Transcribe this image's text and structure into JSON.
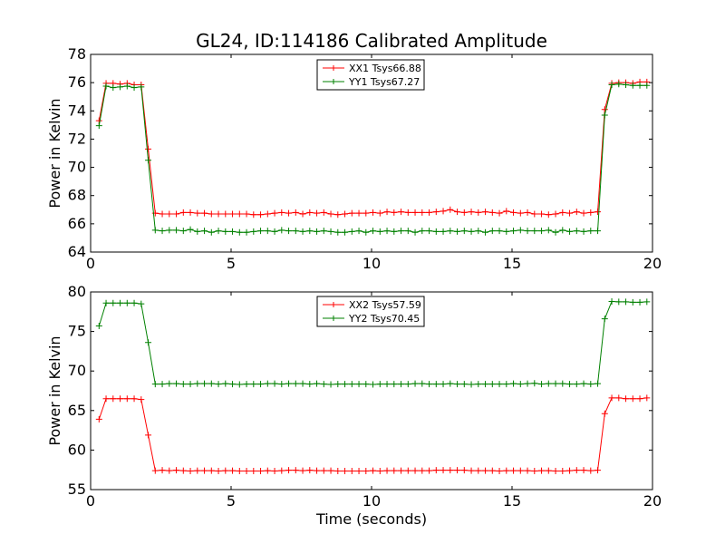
{
  "chart_data": [
    {
      "type": "line",
      "title": "GL24, ID:114186 Calibrated Amplitude",
      "xlabel": "",
      "ylabel": "Power in Kelvin",
      "xlim": [
        0,
        20
      ],
      "ylim": [
        64,
        78
      ],
      "xticks": [
        0,
        5,
        10,
        15,
        20
      ],
      "yticks": [
        64,
        66,
        68,
        70,
        72,
        74,
        76,
        78
      ],
      "grid": false,
      "legend_position": "upper-center",
      "x": [
        0.3,
        0.55,
        0.8,
        1.05,
        1.3,
        1.55,
        1.8,
        2.05,
        2.3,
        2.55,
        2.8,
        3.05,
        3.3,
        3.55,
        3.8,
        4.05,
        4.3,
        4.55,
        4.8,
        5.05,
        5.3,
        5.55,
        5.8,
        6.05,
        6.3,
        6.55,
        6.8,
        7.05,
        7.3,
        7.55,
        7.8,
        8.05,
        8.3,
        8.55,
        8.8,
        9.05,
        9.3,
        9.55,
        9.8,
        10.05,
        10.3,
        10.55,
        10.8,
        11.05,
        11.3,
        11.55,
        11.8,
        12.05,
        12.3,
        12.55,
        12.8,
        13.05,
        13.3,
        13.55,
        13.8,
        14.05,
        14.3,
        14.55,
        14.8,
        15.05,
        15.3,
        15.55,
        15.8,
        16.05,
        16.3,
        16.55,
        16.8,
        17.05,
        17.3,
        17.55,
        17.8,
        18.05,
        18.3,
        18.55,
        18.8,
        19.05,
        19.3,
        19.55,
        19.8
      ],
      "series": [
        {
          "name": "XX1 Tsys66.88",
          "color": "#ff0000",
          "values": [
            73.3,
            75.95,
            75.95,
            75.9,
            75.95,
            75.85,
            75.85,
            71.3,
            66.75,
            66.7,
            66.7,
            66.7,
            66.8,
            66.8,
            66.75,
            66.75,
            66.7,
            66.7,
            66.7,
            66.7,
            66.7,
            66.7,
            66.65,
            66.65,
            66.7,
            66.75,
            66.8,
            66.75,
            66.8,
            66.7,
            66.8,
            66.75,
            66.8,
            66.7,
            66.65,
            66.7,
            66.75,
            66.75,
            66.75,
            66.8,
            66.75,
            66.85,
            66.8,
            66.85,
            66.8,
            66.8,
            66.8,
            66.8,
            66.85,
            66.9,
            67.0,
            66.85,
            66.8,
            66.85,
            66.8,
            66.85,
            66.8,
            66.75,
            66.9,
            66.8,
            66.75,
            66.8,
            66.7,
            66.7,
            66.65,
            66.7,
            66.8,
            66.75,
            66.85,
            66.75,
            66.8,
            66.85,
            74.1,
            75.95,
            76.0,
            76.0,
            75.95,
            76.05,
            76.05
          ]
        },
        {
          "name": "YY1 Tsys67.27",
          "color": "#008000",
          "values": [
            72.95,
            75.75,
            75.65,
            75.7,
            75.75,
            75.65,
            75.7,
            70.5,
            65.55,
            65.5,
            65.55,
            65.55,
            65.5,
            65.6,
            65.45,
            65.5,
            65.4,
            65.5,
            65.45,
            65.45,
            65.4,
            65.4,
            65.45,
            65.5,
            65.5,
            65.45,
            65.55,
            65.5,
            65.5,
            65.45,
            65.5,
            65.45,
            65.5,
            65.45,
            65.4,
            65.4,
            65.45,
            65.5,
            65.4,
            65.5,
            65.45,
            65.5,
            65.45,
            65.5,
            65.5,
            65.4,
            65.5,
            65.5,
            65.45,
            65.45,
            65.5,
            65.45,
            65.5,
            65.45,
            65.5,
            65.4,
            65.5,
            65.5,
            65.45,
            65.5,
            65.55,
            65.5,
            65.5,
            65.5,
            65.55,
            65.4,
            65.55,
            65.45,
            65.5,
            65.45,
            65.5,
            65.5,
            73.7,
            75.85,
            75.9,
            75.85,
            75.8,
            75.8,
            75.8
          ]
        }
      ]
    },
    {
      "type": "line",
      "title": "",
      "xlabel": "Time (seconds)",
      "ylabel": "Power in Kelvin",
      "xlim": [
        0,
        20
      ],
      "ylim": [
        55,
        80
      ],
      "xticks": [
        0,
        5,
        10,
        15,
        20
      ],
      "yticks": [
        55,
        60,
        65,
        70,
        75,
        80
      ],
      "grid": false,
      "legend_position": "upper-center",
      "x": [
        0.3,
        0.55,
        0.8,
        1.05,
        1.3,
        1.55,
        1.8,
        2.05,
        2.3,
        2.55,
        2.8,
        3.05,
        3.3,
        3.55,
        3.8,
        4.05,
        4.3,
        4.55,
        4.8,
        5.05,
        5.3,
        5.55,
        5.8,
        6.05,
        6.3,
        6.55,
        6.8,
        7.05,
        7.3,
        7.55,
        7.8,
        8.05,
        8.3,
        8.55,
        8.8,
        9.05,
        9.3,
        9.55,
        9.8,
        10.05,
        10.3,
        10.55,
        10.8,
        11.05,
        11.3,
        11.55,
        11.8,
        12.05,
        12.3,
        12.55,
        12.8,
        13.05,
        13.3,
        13.55,
        13.8,
        14.05,
        14.3,
        14.55,
        14.8,
        15.05,
        15.3,
        15.55,
        15.8,
        16.05,
        16.3,
        16.55,
        16.8,
        17.05,
        17.3,
        17.55,
        17.8,
        18.05,
        18.3,
        18.55,
        18.8,
        19.05,
        19.3,
        19.55,
        19.8
      ],
      "series": [
        {
          "name": "XX2 Tsys57.59",
          "color": "#ff0000",
          "values": [
            63.9,
            66.5,
            66.5,
            66.5,
            66.5,
            66.5,
            66.4,
            61.9,
            57.4,
            57.45,
            57.4,
            57.45,
            57.4,
            57.35,
            57.4,
            57.4,
            57.4,
            57.35,
            57.4,
            57.4,
            57.35,
            57.35,
            57.35,
            57.35,
            57.4,
            57.35,
            57.4,
            57.45,
            57.45,
            57.4,
            57.45,
            57.4,
            57.4,
            57.4,
            57.35,
            57.35,
            57.35,
            57.35,
            57.35,
            57.4,
            57.35,
            57.4,
            57.4,
            57.4,
            57.4,
            57.4,
            57.4,
            57.4,
            57.45,
            57.45,
            57.45,
            57.45,
            57.45,
            57.4,
            57.4,
            57.4,
            57.4,
            57.35,
            57.4,
            57.4,
            57.4,
            57.4,
            57.35,
            57.4,
            57.4,
            57.35,
            57.35,
            57.4,
            57.45,
            57.45,
            57.4,
            57.45,
            64.6,
            66.6,
            66.6,
            66.5,
            66.5,
            66.5,
            66.6
          ]
        },
        {
          "name": "YY2 Tsys70.45",
          "color": "#008000",
          "values": [
            75.7,
            78.6,
            78.6,
            78.6,
            78.6,
            78.6,
            78.5,
            73.6,
            68.35,
            68.35,
            68.4,
            68.4,
            68.35,
            68.35,
            68.4,
            68.4,
            68.4,
            68.35,
            68.4,
            68.35,
            68.3,
            68.35,
            68.35,
            68.35,
            68.4,
            68.4,
            68.35,
            68.4,
            68.4,
            68.4,
            68.35,
            68.4,
            68.35,
            68.3,
            68.35,
            68.35,
            68.35,
            68.35,
            68.35,
            68.3,
            68.35,
            68.35,
            68.35,
            68.35,
            68.35,
            68.4,
            68.4,
            68.35,
            68.35,
            68.35,
            68.4,
            68.35,
            68.35,
            68.3,
            68.35,
            68.35,
            68.35,
            68.35,
            68.35,
            68.4,
            68.35,
            68.4,
            68.45,
            68.35,
            68.4,
            68.4,
            68.4,
            68.35,
            68.35,
            68.4,
            68.35,
            68.4,
            76.6,
            78.8,
            78.75,
            78.75,
            78.7,
            78.7,
            78.75
          ]
        }
      ]
    }
  ]
}
